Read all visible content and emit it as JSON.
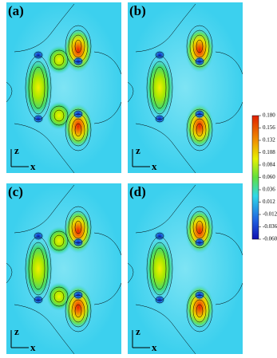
{
  "panels": [
    {
      "label": "(a)"
    },
    {
      "label": "(b)"
    },
    {
      "label": "(c)"
    },
    {
      "label": "(d)"
    }
  ],
  "axes": {
    "vertical": "z",
    "horizontal": "x"
  },
  "colorbar": {
    "range": [
      -0.06,
      0.18
    ],
    "ticks": [
      {
        "value": 0.18,
        "label": "0.180"
      },
      {
        "value": 0.156,
        "label": "0.156"
      },
      {
        "value": 0.132,
        "label": "0.132"
      },
      {
        "value": 0.108,
        "label": "0.108"
      },
      {
        "value": 0.084,
        "label": "0.084"
      },
      {
        "value": 0.06,
        "label": "0.060"
      },
      {
        "value": 0.036,
        "label": "0.036"
      },
      {
        "value": 0.012,
        "label": "0.012"
      },
      {
        "value": -0.012,
        "label": "-0.012"
      },
      {
        "value": -0.036,
        "label": "-0.036"
      },
      {
        "value": -0.06,
        "label": "-0.060"
      }
    ]
  }
}
